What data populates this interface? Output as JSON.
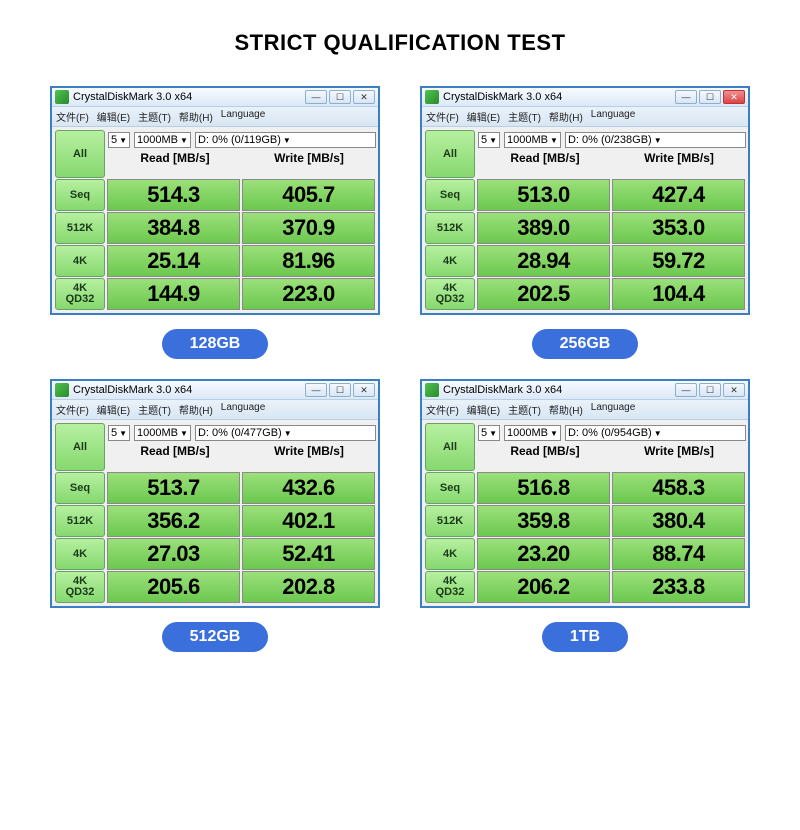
{
  "page_title": "STRICT QUALIFICATION TEST",
  "app_title": "CrystalDiskMark 3.0 x64",
  "menu": {
    "file": "文件(F)",
    "edit": "编辑(E)",
    "theme": "主题(T)",
    "help": "帮助(H)",
    "lang": "Language"
  },
  "runs": "5",
  "size": "1000MB",
  "hdr_read": "Read [MB/s]",
  "hdr_write": "Write [MB/s]",
  "btn_all": "All",
  "btn_seq": "Seq",
  "btn_512k": "512K",
  "btn_4k": "4K",
  "btn_4kqd32_l1": "4K",
  "btn_4kqd32_l2": "QD32",
  "panels": [
    {
      "drive": "D: 0% (0/119GB)",
      "capacity": "128GB",
      "close_red": false,
      "rows": [
        {
          "read": "514.3",
          "write": "405.7"
        },
        {
          "read": "384.8",
          "write": "370.9"
        },
        {
          "read": "25.14",
          "write": "81.96"
        },
        {
          "read": "144.9",
          "write": "223.0"
        }
      ]
    },
    {
      "drive": "D: 0% (0/238GB)",
      "capacity": "256GB",
      "close_red": true,
      "rows": [
        {
          "read": "513.0",
          "write": "427.4"
        },
        {
          "read": "389.0",
          "write": "353.0"
        },
        {
          "read": "28.94",
          "write": "59.72"
        },
        {
          "read": "202.5",
          "write": "104.4"
        }
      ]
    },
    {
      "drive": "D: 0% (0/477GB)",
      "capacity": "512GB",
      "close_red": false,
      "rows": [
        {
          "read": "513.7",
          "write": "432.6"
        },
        {
          "read": "356.2",
          "write": "402.1"
        },
        {
          "read": "27.03",
          "write": "52.41"
        },
        {
          "read": "205.6",
          "write": "202.8"
        }
      ]
    },
    {
      "drive": "D: 0% (0/954GB)",
      "capacity": "1TB",
      "close_red": false,
      "rows": [
        {
          "read": "516.8",
          "write": "458.3"
        },
        {
          "read": "359.8",
          "write": "380.4"
        },
        {
          "read": "23.20",
          "write": "88.74"
        },
        {
          "read": "206.2",
          "write": "233.8"
        }
      ]
    }
  ],
  "colors": {
    "accent_blue": "#3a6fdc",
    "window_border": "#3a7fc4",
    "cell_green_top": "#9be07a",
    "cell_green_bot": "#6cc84f",
    "btn_green_top": "#b7f0a0",
    "btn_green_bot": "#86d86f"
  }
}
